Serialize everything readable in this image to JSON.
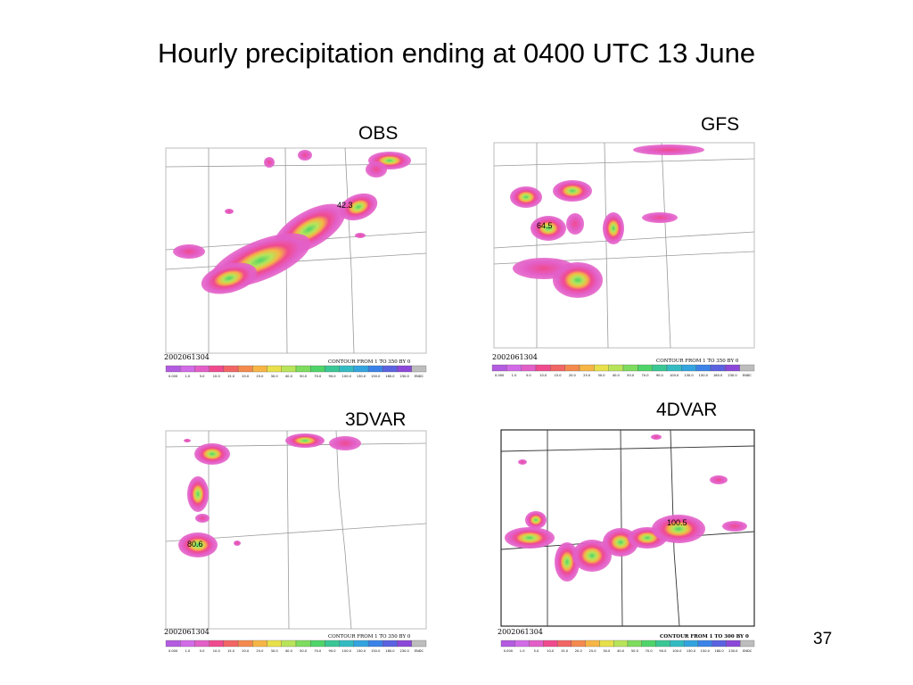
{
  "slide": {
    "title": "Hourly precipitation ending at 0400 UTC 13 June",
    "page_number": "37"
  },
  "legend_ticks": [
    "0.000",
    "1.0",
    "5.0",
    "10.0",
    "15.0",
    "20.0",
    "25.0",
    "30.0",
    "40.0",
    "50.0",
    "70.0",
    "90.0",
    "100.0",
    "130.0",
    "150.0",
    "180.0",
    "230.0",
    "ENDC"
  ],
  "legend_colors": [
    "#b35ce0",
    "#d26be8",
    "#e35fc8",
    "#f04a8e",
    "#f26565",
    "#f48a4e",
    "#f6b545",
    "#e8e04a",
    "#b8e45a",
    "#7edc5f",
    "#4fd46a",
    "#3ac795",
    "#33bbc2",
    "#34a4df",
    "#3b82e8",
    "#5b62e0",
    "#8b48d8",
    "#bdbdbd"
  ],
  "colors": {
    "background": "#ffffff",
    "map_lines": "#9a9a9a",
    "frame": "#bdbdbd"
  },
  "panels": [
    {
      "id": "obs",
      "label": "OBS",
      "timestamp": "2002061304",
      "contour": "CONTOUR FROM 1 TO 350 BY 0",
      "max_value": "42.3"
    },
    {
      "id": "gfs",
      "label": "GFS",
      "timestamp": "2002061304",
      "contour": "CONTOUR FROM 1 TO 350 BY 0",
      "max_value": "64.5"
    },
    {
      "id": "3dvar",
      "label": "3DVAR",
      "timestamp": "2002061304",
      "contour": "CONTOUR FROM 1 TO 350 BY 0",
      "max_value": "80.6"
    },
    {
      "id": "4dvar",
      "label": "4DVAR",
      "timestamp": "2002061304",
      "contour": "CONTOUR FROM 1 TO 300 BY 0",
      "max_value": "100.5"
    }
  ]
}
